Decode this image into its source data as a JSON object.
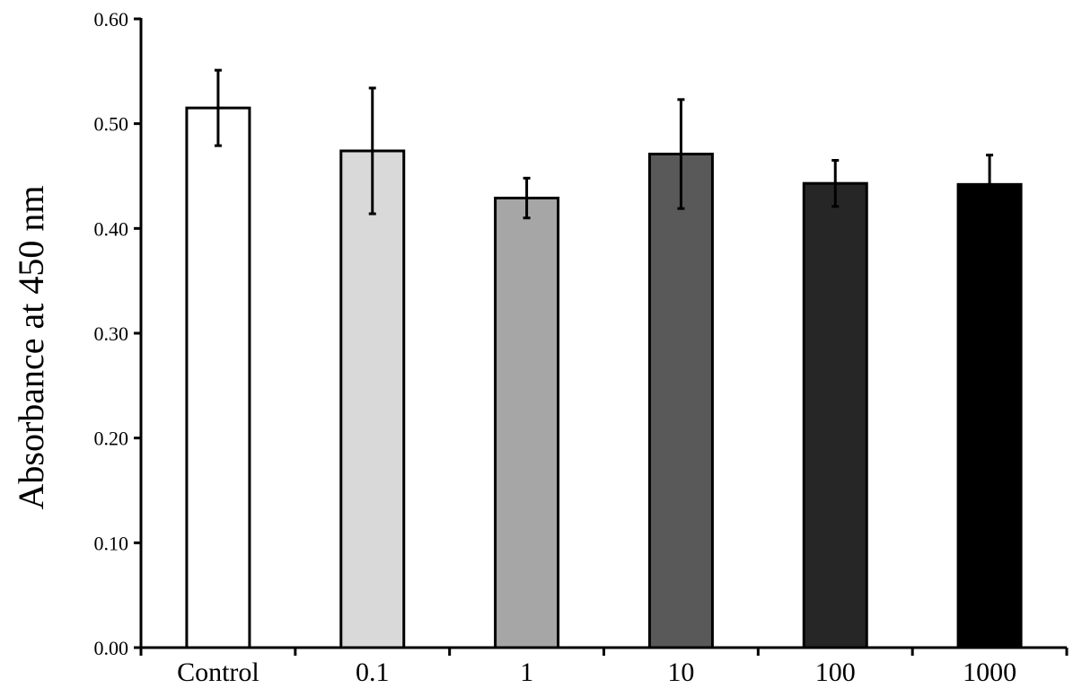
{
  "chart_data": {
    "type": "bar",
    "title": "",
    "xlabel": "",
    "ylabel": "Absorbance at 450 nm",
    "ylim": [
      0,
      0.6
    ],
    "yticks": [
      "0.00",
      "0.10",
      "0.20",
      "0.30",
      "0.40",
      "0.50",
      "0.60"
    ],
    "ytick_values": [
      0,
      0.1,
      0.2,
      0.3,
      0.4,
      0.5,
      0.6
    ],
    "categories": [
      "Control",
      "0.1",
      "1",
      "10",
      "100",
      "1000"
    ],
    "values": [
      0.515,
      0.474,
      0.429,
      0.471,
      0.443,
      0.442
    ],
    "errors_upper": [
      0.036,
      0.06,
      0.019,
      0.052,
      0.022,
      0.028
    ],
    "errors_lower": [
      0.036,
      0.06,
      0.019,
      0.052,
      0.022,
      0.028
    ],
    "bar_colors": [
      "#ffffff",
      "#d9d9d9",
      "#a6a6a6",
      "#595959",
      "#262626",
      "#000000"
    ],
    "grid": false,
    "legend": "none"
  }
}
